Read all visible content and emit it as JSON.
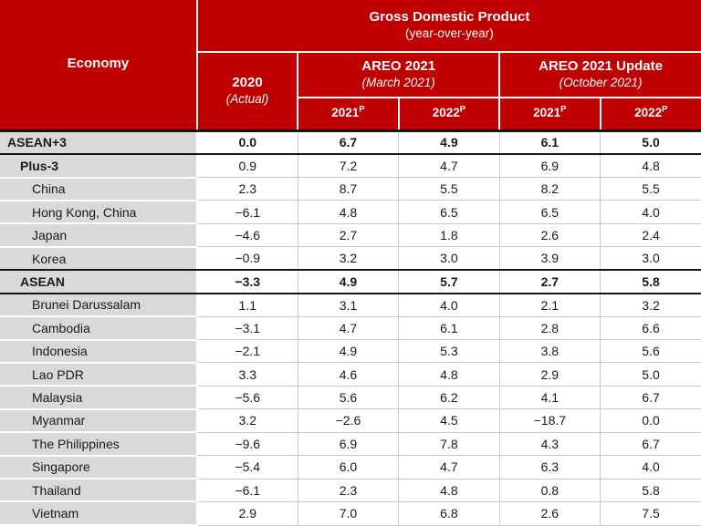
{
  "header": {
    "economy": "Economy",
    "gdp": {
      "title": "Gross Domestic Product",
      "subtitle": "(year-over-year)"
    },
    "col2020": {
      "year": "2020",
      "note": "(Actual)"
    },
    "areo_march": {
      "title": "AREO 2021",
      "note": "(March 2021)"
    },
    "areo_update": {
      "title": "AREO 2021 Update",
      "note": "(October 2021)"
    },
    "subcols": [
      {
        "year": "2021",
        "sup": "P"
      },
      {
        "year": "2022",
        "sup": "P"
      },
      {
        "year": "2021",
        "sup": "P"
      },
      {
        "year": "2022",
        "sup": "P"
      }
    ]
  },
  "colors": {
    "header_red": "#C00000",
    "label_gray": "#D9D9D9",
    "separator_black": "#141414",
    "grid_gray": "#C9C9C9"
  },
  "chart_data": {
    "type": "table",
    "title": "Gross Domestic Product",
    "subtitle": "(year-over-year)",
    "columns": [
      "Economy",
      "2020 (Actual)",
      "AREO 2021 (March 2021) — 2021P",
      "AREO 2021 (March 2021) — 2022P",
      "AREO 2021 Update (October 2021) — 2021P",
      "AREO 2021 Update (October 2021) — 2022P"
    ],
    "rows": [
      {
        "economy": "ASEAN+3",
        "indent": 0,
        "bold": "row",
        "sep_below": true,
        "values": [
          "0.0",
          "6.7",
          "4.9",
          "6.1",
          "5.0"
        ]
      },
      {
        "economy": "Plus-3",
        "indent": 1,
        "bold": "label",
        "sep_below": false,
        "values": [
          "0.9",
          "7.2",
          "4.7",
          "6.9",
          "4.8"
        ]
      },
      {
        "economy": "China",
        "indent": 2,
        "bold": "none",
        "sep_below": false,
        "values": [
          "2.3",
          "8.7",
          "5.5",
          "8.2",
          "5.5"
        ]
      },
      {
        "economy": "Hong Kong, China",
        "indent": 2,
        "bold": "none",
        "sep_below": false,
        "values": [
          "−6.1",
          "4.8",
          "6.5",
          "6.5",
          "4.0"
        ]
      },
      {
        "economy": "Japan",
        "indent": 2,
        "bold": "none",
        "sep_below": false,
        "values": [
          "−4.6",
          "2.7",
          "1.8",
          "2.6",
          "2.4"
        ]
      },
      {
        "economy": "Korea",
        "indent": 2,
        "bold": "none",
        "sep_below": true,
        "values": [
          "−0.9",
          "3.2",
          "3.0",
          "3.9",
          "3.0"
        ]
      },
      {
        "economy": "ASEAN",
        "indent": 1,
        "bold": "row",
        "sep_below": true,
        "values": [
          "−3.3",
          "4.9",
          "5.7",
          "2.7",
          "5.8"
        ]
      },
      {
        "economy": "Brunei Darussalam",
        "indent": 2,
        "bold": "none",
        "sep_below": false,
        "values": [
          "1.1",
          "3.1",
          "4.0",
          "2.1",
          "3.2"
        ]
      },
      {
        "economy": "Cambodia",
        "indent": 2,
        "bold": "none",
        "sep_below": false,
        "values": [
          "−3.1",
          "4.7",
          "6.1",
          "2.8",
          "6.6"
        ]
      },
      {
        "economy": "Indonesia",
        "indent": 2,
        "bold": "none",
        "sep_below": false,
        "values": [
          "−2.1",
          "4.9",
          "5.3",
          "3.8",
          "5.6"
        ]
      },
      {
        "economy": "Lao PDR",
        "indent": 2,
        "bold": "none",
        "sep_below": false,
        "values": [
          "3.3",
          "4.6",
          "4.8",
          "2.9",
          "5.0"
        ]
      },
      {
        "economy": "Malaysia",
        "indent": 2,
        "bold": "none",
        "sep_below": false,
        "values": [
          "−5.6",
          "5.6",
          "6.2",
          "4.1",
          "6.7"
        ]
      },
      {
        "economy": "Myanmar",
        "indent": 2,
        "bold": "none",
        "sep_below": false,
        "values": [
          "3.2",
          "−2.6",
          "4.5",
          "−18.7",
          "0.0"
        ]
      },
      {
        "economy": "The Philippines",
        "indent": 2,
        "bold": "none",
        "sep_below": false,
        "values": [
          "−9.6",
          "6.9",
          "7.8",
          "4.3",
          "6.7"
        ]
      },
      {
        "economy": "Singapore",
        "indent": 2,
        "bold": "none",
        "sep_below": false,
        "values": [
          "−5.4",
          "6.0",
          "4.7",
          "6.3",
          "4.0"
        ]
      },
      {
        "economy": "Thailand",
        "indent": 2,
        "bold": "none",
        "sep_below": false,
        "values": [
          "−6.1",
          "2.3",
          "4.8",
          "0.8",
          "5.8"
        ]
      },
      {
        "economy": "Vietnam",
        "indent": 2,
        "bold": "none",
        "sep_below": false,
        "values": [
          "2.9",
          "7.0",
          "6.8",
          "2.6",
          "7.5"
        ]
      }
    ]
  }
}
